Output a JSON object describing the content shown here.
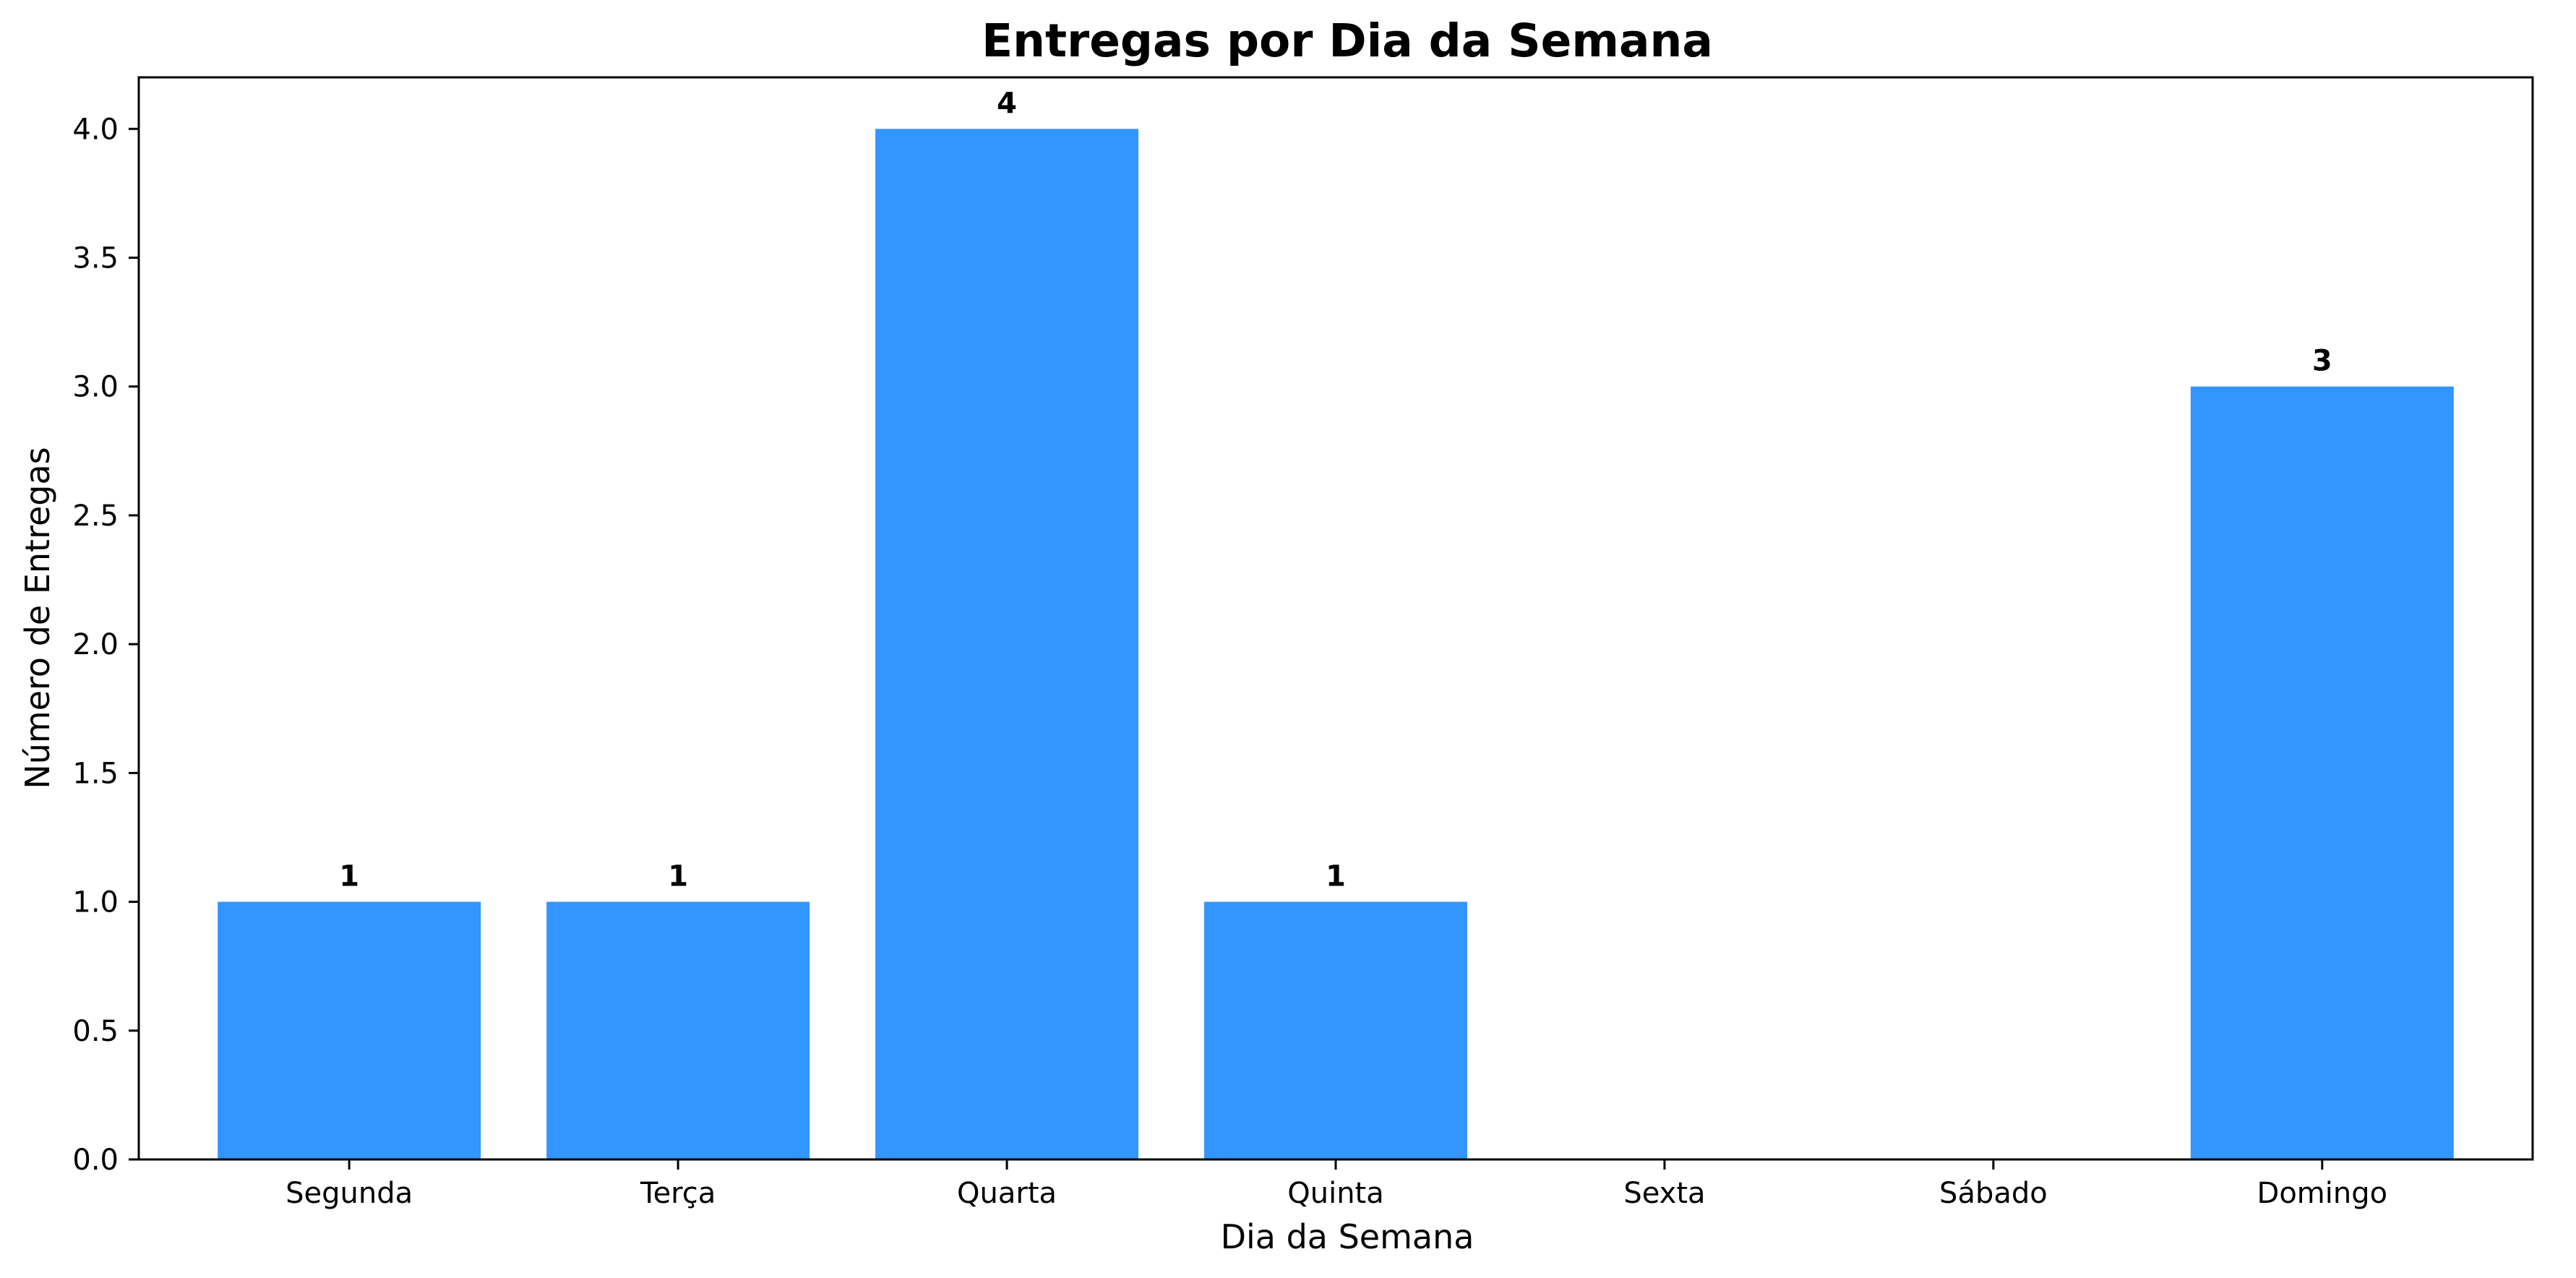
{
  "chart_data": {
    "type": "bar",
    "title": "Entregas por Dia da Semana",
    "xlabel": "Dia da Semana",
    "ylabel": "Número de Entregas",
    "categories": [
      "Segunda",
      "Terça",
      "Quarta",
      "Quinta",
      "Sexta",
      "Sábado",
      "Domingo"
    ],
    "values": [
      1,
      1,
      4,
      1,
      0,
      0,
      3
    ],
    "data_labels": [
      "1",
      "1",
      "4",
      "1",
      "",
      "",
      "3"
    ],
    "ylim": [
      0,
      4.2
    ],
    "yticks": [
      "0.0",
      "0.5",
      "1.0",
      "1.5",
      "2.0",
      "2.5",
      "3.0",
      "3.5",
      "4.0"
    ],
    "ytick_values": [
      0,
      0.5,
      1,
      1.5,
      2,
      2.5,
      3,
      3.5,
      4
    ],
    "bar_color": "#3395ff",
    "grid": false,
    "legend": "none"
  }
}
